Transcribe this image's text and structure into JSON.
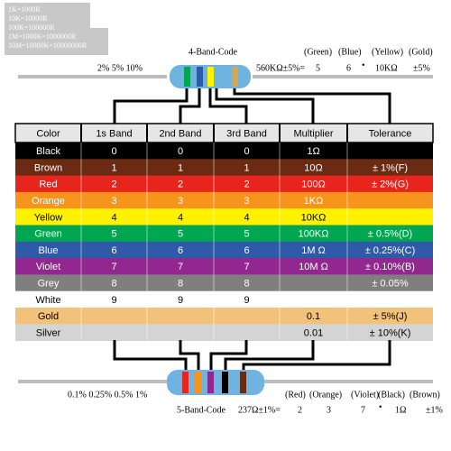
{
  "notes": [
    "1K=1000R",
    "10K=10000R",
    "100K=100000R",
    "1M=1000K=1000000R",
    "10M=10000K=10000000R"
  ],
  "four_band": {
    "title": "4-Band-Code",
    "tolerances": "2% 5% 10%",
    "example": "560KΩ±5%=",
    "names": [
      "(Green)",
      "(Blue)",
      "(Yellow)",
      "(Gold)"
    ],
    "values": [
      "5",
      "6",
      "•",
      "10KΩ",
      "±5%"
    ]
  },
  "table": {
    "header": [
      "Color",
      "1s Band",
      "2nd  Band",
      "3rd  Band",
      "Multiplier",
      "Tolerance"
    ],
    "rows": [
      {
        "color": "#000000",
        "fg": "#ffffff",
        "cells": [
          "Black",
          "0",
          "0",
          "0",
          "1Ω",
          null
        ]
      },
      {
        "color": "#6b2a12",
        "fg": "#ffffff",
        "cells": [
          "Brown",
          "1",
          "1",
          "1",
          "10Ω",
          "± 1%(F)"
        ]
      },
      {
        "color": "#e8251c",
        "fg": "#ffffff",
        "cells": [
          "Red",
          "2",
          "2",
          "2",
          "100Ω",
          "± 2%(G)"
        ]
      },
      {
        "color": "#f7941d",
        "fg": "#ffffff",
        "cells": [
          "Orange",
          "3",
          "3",
          "3",
          "1KΩ",
          null
        ]
      },
      {
        "color": "#fff200",
        "fg": "#000000",
        "cells": [
          "Yellow",
          "4",
          "4",
          "4",
          "10KΩ",
          null
        ]
      },
      {
        "color": "#00a651",
        "fg": "#ffffff",
        "cells": [
          "Green",
          "5",
          "5",
          "5",
          "100KΩ",
          "± 0.5%(D)"
        ]
      },
      {
        "color": "#2e5aa8",
        "fg": "#ffffff",
        "cells": [
          "Blue",
          "6",
          "6",
          "6",
          "1M Ω",
          "± 0.25%(C)"
        ]
      },
      {
        "color": "#92278f",
        "fg": "#ffffff",
        "cells": [
          "Violet",
          "7",
          "7",
          "7",
          "10M Ω",
          "± 0.10%(B)"
        ]
      },
      {
        "color": "#7f7f7f",
        "fg": "#ffffff",
        "cells": [
          "Grey",
          "8",
          "8",
          "8",
          null,
          "± 0.05%"
        ]
      },
      {
        "color": "#ffffff",
        "fg": "#000000",
        "cells": [
          "White",
          "9",
          "9",
          "9",
          null,
          null
        ]
      },
      {
        "color": "#f3c27a",
        "fg": "#000000",
        "cells": [
          "Gold",
          null,
          null,
          null,
          "0.1",
          "± 5%(J)"
        ]
      },
      {
        "color": "#d4d4d4",
        "fg": "#000000",
        "cells": [
          "Silver",
          null,
          null,
          null,
          "0.01",
          "± 10%(K)"
        ]
      }
    ]
  },
  "five_band": {
    "title": "5-Band-Code",
    "tolerances": "0.1%  0.25%  0.5%  1%",
    "example": "237Ω±1%=",
    "names": [
      "(Red)",
      "(Orange)",
      "(Violet)",
      "(Black)",
      "(Brown)"
    ],
    "values": [
      "2",
      "3",
      "7",
      "•",
      "1Ω",
      "±1%"
    ]
  }
}
